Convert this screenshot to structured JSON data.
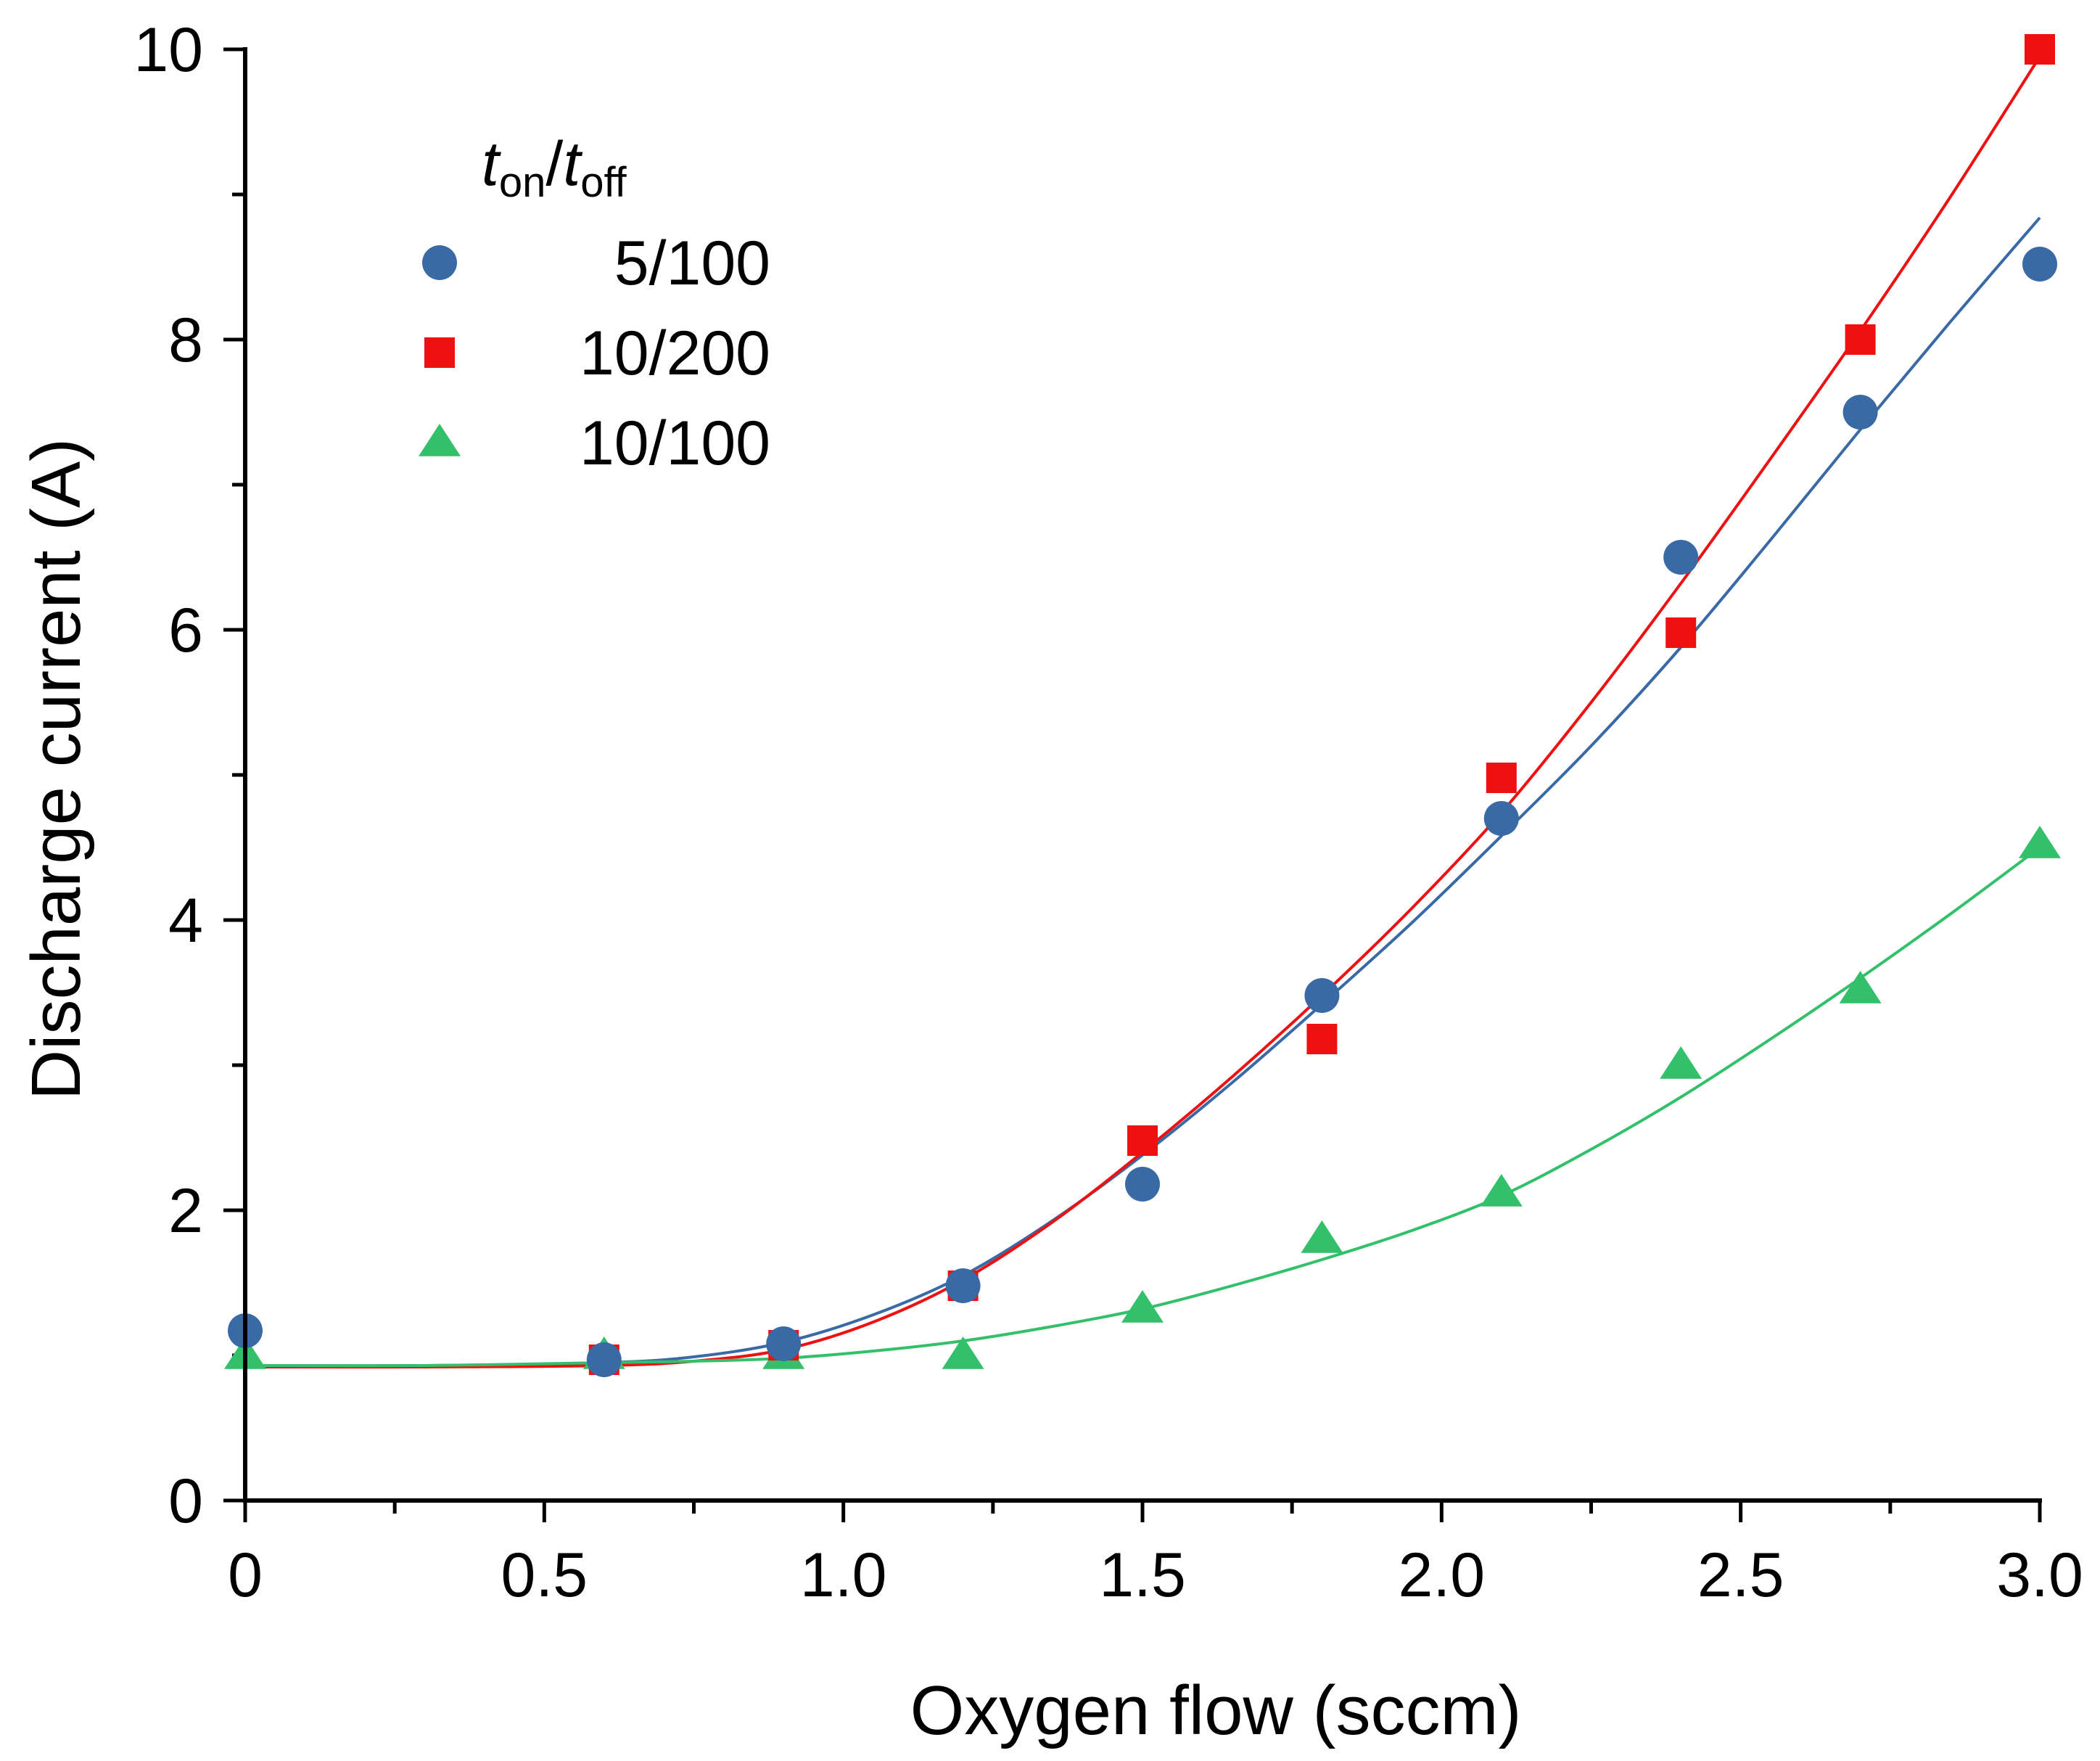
{
  "chart_data": {
    "type": "scatter",
    "title": "",
    "xlabel": "Oxygen flow (sccm)",
    "ylabel": "Discharge current (A)",
    "xlim": [
      0,
      3.0
    ],
    "ylim": [
      0,
      10
    ],
    "x_ticks": [
      "0",
      "0.5",
      "1.0",
      "1.5",
      "2.0",
      "2.5",
      "3.0"
    ],
    "x_tick_values": [
      0,
      0.5,
      1.0,
      1.5,
      2.0,
      2.5,
      3.0
    ],
    "y_ticks": [
      "0",
      "2",
      "4",
      "6",
      "8",
      "10"
    ],
    "y_tick_values": [
      0,
      2,
      4,
      6,
      8,
      10
    ],
    "legend": {
      "title_var1": "t",
      "title_sub1": "on",
      "title_sep": "/",
      "title_var2": "t",
      "title_sub2": "off",
      "placement": "top-left"
    },
    "series": [
      {
        "name": "5/100",
        "marker": "circle",
        "color": "#3a6aa6",
        "x": [
          0,
          0.6,
          0.9,
          1.2,
          1.5,
          1.8,
          2.1,
          2.4,
          2.7,
          3.0
        ],
        "y": [
          1.17,
          0.97,
          1.08,
          1.48,
          2.18,
          3.48,
          4.7,
          6.5,
          7.5,
          8.52
        ],
        "fit_x": [
          0,
          0.3,
          0.6,
          0.75,
          0.9,
          1.05,
          1.2,
          1.35,
          1.5,
          1.65,
          1.8,
          1.95,
          2.1,
          2.25,
          2.4,
          2.55,
          2.7,
          2.85,
          3.0
        ],
        "fit_y": [
          0.93,
          0.93,
          0.95,
          0.99,
          1.09,
          1.28,
          1.55,
          1.93,
          2.38,
          2.88,
          3.42,
          3.98,
          4.58,
          5.2,
          5.88,
          6.62,
          7.38,
          8.12,
          8.84
        ]
      },
      {
        "name": "10/200",
        "marker": "square",
        "color": "#ee1111",
        "x": [
          0.6,
          0.9,
          1.2,
          1.5,
          1.8,
          2.1,
          2.4,
          2.7,
          3.0
        ],
        "y": [
          0.97,
          1.07,
          1.48,
          2.48,
          3.18,
          4.98,
          5.98,
          8.0,
          10.0
        ],
        "fit_x": [
          0,
          0.3,
          0.6,
          0.75,
          0.9,
          1.05,
          1.2,
          1.35,
          1.5,
          1.65,
          1.8,
          1.95,
          2.1,
          2.25,
          2.4,
          2.55,
          2.7,
          2.85,
          3.0
        ],
        "fit_y": [
          0.92,
          0.92,
          0.93,
          0.96,
          1.04,
          1.23,
          1.52,
          1.92,
          2.4,
          2.92,
          3.48,
          4.08,
          4.74,
          5.5,
          6.32,
          7.18,
          8.06,
          8.98,
          9.95
        ]
      },
      {
        "name": "10/100",
        "marker": "triangle",
        "color": "#33c06a",
        "x": [
          0,
          0.6,
          0.9,
          1.2,
          1.5,
          1.8,
          2.1,
          2.4,
          2.7,
          3.0
        ],
        "y": [
          1.0,
          1.0,
          1.0,
          1.0,
          1.32,
          1.8,
          2.12,
          3.0,
          3.52,
          4.52
        ],
        "fit_x": [
          0,
          0.3,
          0.6,
          0.75,
          0.9,
          1.05,
          1.2,
          1.35,
          1.5,
          1.65,
          1.8,
          1.95,
          2.1,
          2.25,
          2.4,
          2.55,
          2.7,
          2.85,
          3.0
        ],
        "fit_y": [
          0.93,
          0.93,
          0.95,
          0.96,
          0.98,
          1.03,
          1.1,
          1.2,
          1.32,
          1.48,
          1.66,
          1.86,
          2.1,
          2.42,
          2.78,
          3.18,
          3.6,
          4.04,
          4.5
        ]
      }
    ]
  }
}
